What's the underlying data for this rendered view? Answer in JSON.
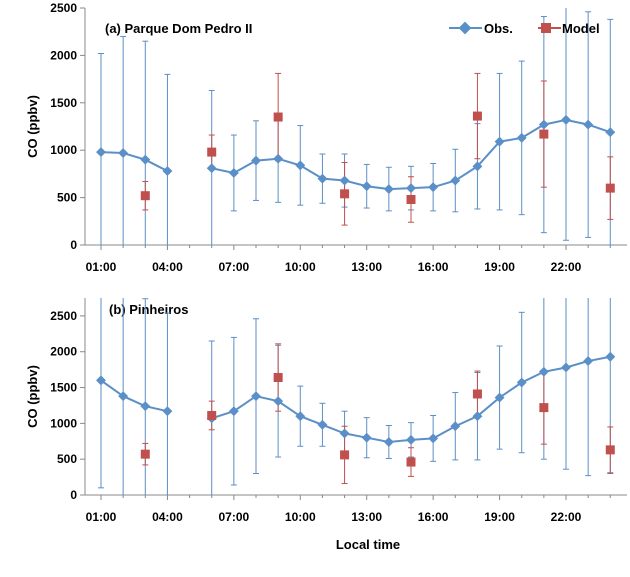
{
  "chart_data": [
    {
      "type": "line",
      "title": "(a) Parque Dom Pedro II",
      "xlabel": "",
      "ylabel": "CO (ppbv)",
      "x": [
        1,
        2,
        3,
        4,
        5,
        6,
        7,
        8,
        9,
        10,
        11,
        12,
        13,
        14,
        15,
        16,
        17,
        18,
        19,
        20,
        21,
        22,
        23,
        24
      ],
      "xticks": [
        1,
        4,
        7,
        10,
        13,
        16,
        19,
        22
      ],
      "xtick_labels": [
        "01:00",
        "04:00",
        "07:00",
        "10:00",
        "13:00",
        "16:00",
        "19:00",
        "22:00"
      ],
      "xlim": [
        0.5,
        24
      ],
      "ylim": [
        0,
        2500
      ],
      "yticks": [
        0,
        500,
        1000,
        1500,
        2000,
        2500
      ],
      "legend": {
        "position": "top-right",
        "entries": [
          "Obs.",
          "Model"
        ]
      },
      "colors": {
        "obs": "#5b8fc7",
        "model": "#c0504d"
      },
      "series": [
        {
          "name": "Obs.",
          "marker": "diamond",
          "values": [
            980,
            970,
            900,
            780,
            null,
            810,
            760,
            890,
            910,
            840,
            700,
            680,
            620,
            590,
            600,
            610,
            680,
            830,
            1090,
            1130,
            1270,
            1320,
            1270,
            1190
          ],
          "error": [
            1040,
            1230,
            1250,
            1020,
            null,
            820,
            400,
            420,
            460,
            420,
            260,
            280,
            230,
            230,
            230,
            250,
            330,
            450,
            720,
            810,
            1140,
            1270,
            1190,
            1190
          ]
        },
        {
          "name": "Model",
          "marker": "square",
          "x": [
            3,
            6,
            9,
            12,
            15,
            18,
            21,
            24
          ],
          "values": [
            520,
            980,
            1350,
            540,
            480,
            1360,
            1170,
            600
          ],
          "error": [
            150,
            180,
            460,
            330,
            240,
            450,
            560,
            330
          ]
        }
      ]
    },
    {
      "type": "line",
      "title": "(b) Pinheiros",
      "xlabel": "Local time",
      "ylabel": "CO (ppbv)",
      "x": [
        1,
        2,
        3,
        4,
        5,
        6,
        7,
        8,
        9,
        10,
        11,
        12,
        13,
        14,
        15,
        16,
        17,
        18,
        19,
        20,
        21,
        22,
        23,
        24
      ],
      "xticks": [
        1,
        4,
        7,
        10,
        13,
        16,
        19,
        22
      ],
      "xtick_labels": [
        "01:00",
        "04:00",
        "07:00",
        "10:00",
        "13:00",
        "16:00",
        "19:00",
        "22:00"
      ],
      "xlim": [
        0.5,
        24
      ],
      "ylim": [
        0,
        2750
      ],
      "yticks": [
        0,
        500,
        1000,
        1500,
        2000,
        2500
      ],
      "legend": {
        "position": "none",
        "entries": []
      },
      "colors": {
        "obs": "#5b8fc7",
        "model": "#c0504d"
      },
      "series": [
        {
          "name": "Obs.",
          "marker": "diamond",
          "values": [
            1600,
            1380,
            1240,
            1170,
            null,
            1070,
            1170,
            1380,
            1310,
            1100,
            980,
            860,
            800,
            740,
            770,
            790,
            960,
            1100,
            1360,
            1570,
            1720,
            1780,
            1870,
            1930
          ],
          "error": [
            1500,
            1500,
            1500,
            1370,
            null,
            1080,
            1030,
            1080,
            780,
            420,
            300,
            310,
            280,
            230,
            240,
            320,
            470,
            610,
            720,
            980,
            1220,
            1420,
            1600,
            1630
          ]
        },
        {
          "name": "Model",
          "marker": "square",
          "x": [
            3,
            6,
            9,
            12,
            15,
            18,
            21,
            24
          ],
          "values": [
            570,
            1110,
            1640,
            560,
            460,
            1410,
            1220,
            630
          ],
          "error": [
            150,
            200,
            470,
            400,
            200,
            320,
            510,
            320
          ]
        }
      ]
    }
  ]
}
